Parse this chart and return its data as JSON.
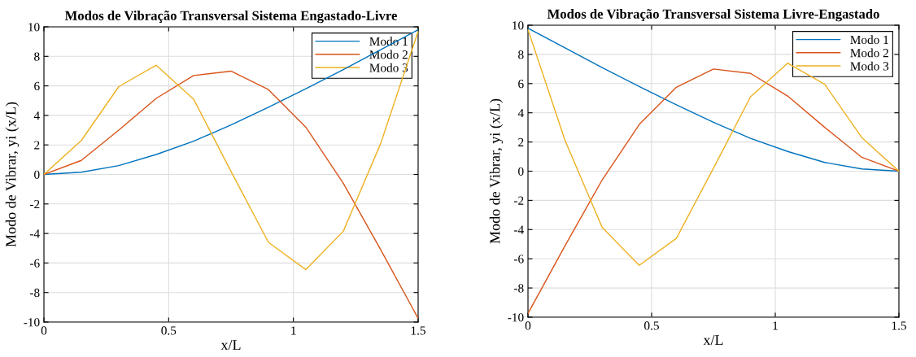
{
  "chart_data": [
    {
      "type": "line",
      "title": "Modos de Vibração Transversal Sistema Engastado-Livre",
      "xlabel": "x/L",
      "ylabel": "Modo de Vibrar, yi (x/L)",
      "x": [
        0,
        0.15,
        0.3,
        0.45,
        0.6,
        0.75,
        0.9,
        1.05,
        1.2,
        1.35,
        1.5
      ],
      "series": [
        {
          "name": "Modo 1",
          "color": "#0072bd",
          "values": [
            0,
            0.15,
            0.6,
            1.35,
            2.25,
            3.35,
            4.55,
            5.8,
            7.1,
            8.45,
            9.8
          ]
        },
        {
          "name": "Modo 2",
          "color": "#d95319",
          "values": [
            0,
            0.95,
            3.0,
            5.15,
            6.7,
            7.0,
            5.75,
            3.2,
            -0.6,
            -5.1,
            -9.75
          ]
        },
        {
          "name": "Modo 3",
          "color": "#edb120",
          "values": [
            0,
            2.3,
            5.95,
            7.4,
            5.1,
            0.2,
            -4.6,
            -6.45,
            -3.85,
            2.1,
            9.7
          ]
        }
      ],
      "xlim": [
        0,
        1.5
      ],
      "ylim": [
        -10,
        10
      ],
      "xticks": [
        0,
        0.5,
        1,
        1.5
      ],
      "yticks": [
        -10,
        -8,
        -6,
        -4,
        -2,
        0,
        2,
        4,
        6,
        8,
        10
      ],
      "grid": true,
      "legend": "top right"
    },
    {
      "type": "line",
      "title": "Modos de Vibração Transversal Sistema Livre-Engastado",
      "xlabel": "x/L",
      "ylabel": "Modo de Vibrar, yi (x/L)",
      "x": [
        0,
        0.15,
        0.3,
        0.45,
        0.6,
        0.75,
        0.9,
        1.05,
        1.2,
        1.35,
        1.5
      ],
      "series": [
        {
          "name": "Modo 1",
          "color": "#0072bd",
          "values": [
            9.8,
            8.45,
            7.1,
            5.8,
            4.55,
            3.35,
            2.25,
            1.35,
            0.6,
            0.15,
            0
          ]
        },
        {
          "name": "Modo 2",
          "color": "#d95319",
          "values": [
            -9.75,
            -5.1,
            -0.6,
            3.2,
            5.75,
            7.0,
            6.7,
            5.15,
            3.0,
            0.95,
            0
          ]
        },
        {
          "name": "Modo 3",
          "color": "#edb120",
          "values": [
            9.7,
            2.1,
            -3.85,
            -6.45,
            -4.6,
            0.2,
            5.1,
            7.4,
            5.95,
            2.3,
            0
          ]
        }
      ],
      "xlim": [
        0,
        1.5
      ],
      "ylim": [
        -10,
        10
      ],
      "xticks": [
        0,
        0.5,
        1,
        1.5
      ],
      "yticks": [
        -10,
        -8,
        -6,
        -4,
        -2,
        0,
        2,
        4,
        6,
        8,
        10
      ],
      "grid": true,
      "legend": "top right"
    }
  ]
}
